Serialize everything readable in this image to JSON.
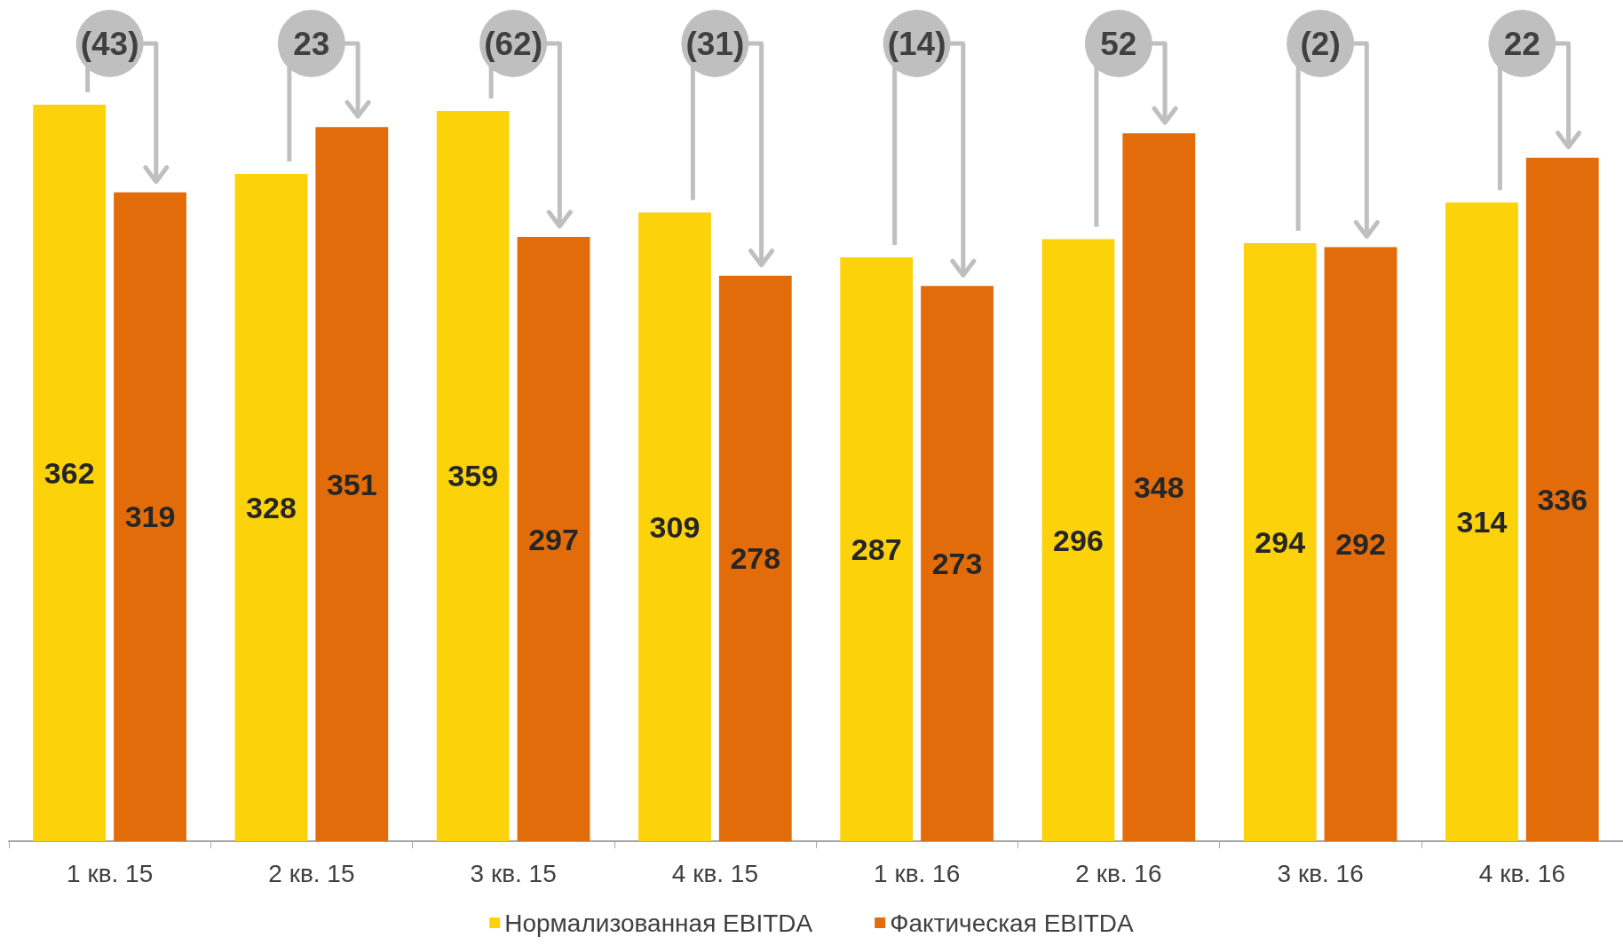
{
  "chart_data": {
    "type": "bar",
    "categories": [
      "1 кв. 15",
      "2 кв. 15",
      "3 кв. 15",
      "4 кв. 15",
      "1 кв. 16",
      "2 кв. 16",
      "3 кв. 16",
      "4 кв. 16"
    ],
    "series": [
      {
        "name": "Нормализованная EBITDA",
        "color": "#fcd20b",
        "values": [
          362,
          328,
          359,
          309,
          287,
          296,
          294,
          314
        ]
      },
      {
        "name": "Фактическая EBITDA",
        "color": "#e36c0a",
        "values": [
          319,
          351,
          297,
          278,
          273,
          348,
          292,
          336
        ]
      }
    ],
    "data_labels": true,
    "legend": "bottom",
    "annotations": [
      "(43)",
      "23",
      "(62)",
      "(31)",
      "(14)",
      "52",
      "(2)",
      "22"
    ]
  }
}
